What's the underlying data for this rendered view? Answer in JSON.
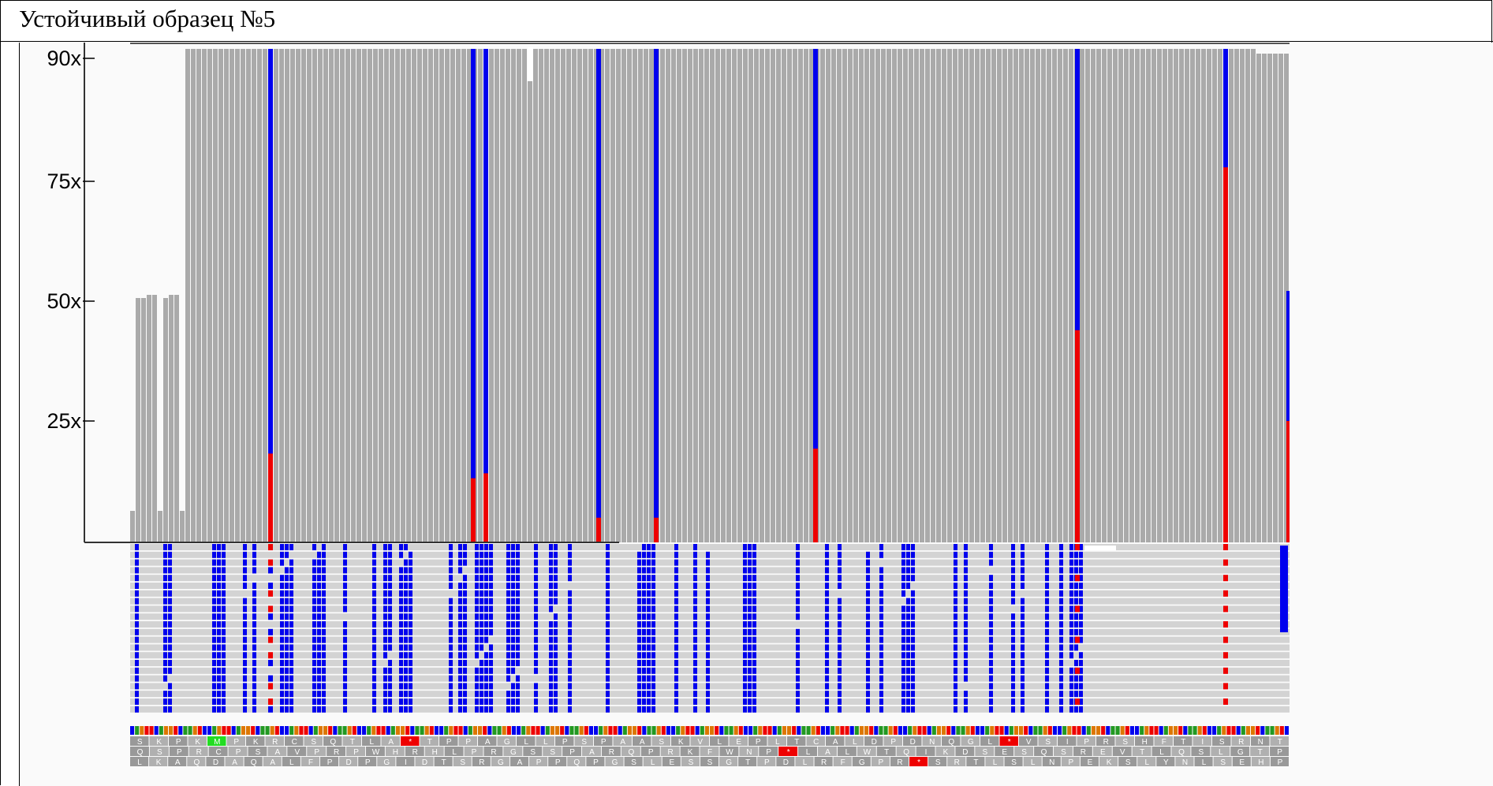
{
  "title": "Устойчивый образец №5",
  "coverage": {
    "y_ticks": [
      "90x",
      "75x",
      "50x",
      "25x"
    ],
    "colors": {
      "ref": "#aaaaaa",
      "alt_blue": "#0000ee",
      "alt_red": "#ee0000",
      "background": "#fafafa"
    }
  },
  "translation": {
    "frame1": [
      "S",
      "K",
      "P",
      "K",
      "M",
      "P",
      "K",
      "R",
      "C",
      "S",
      "Q",
      "T",
      "L",
      "A",
      "*",
      "T",
      "P",
      "P",
      "A",
      "G",
      "L",
      "L",
      "P",
      "S",
      "P",
      "A",
      "A",
      "S",
      "K",
      "V",
      "L",
      "E",
      "P",
      "L",
      "T",
      "C",
      "A",
      "L",
      "D",
      "P",
      "D",
      "N",
      "Q",
      "G",
      "L",
      "*",
      "V",
      "S",
      "I",
      "P",
      "R",
      "S",
      "H",
      "F",
      "T",
      "I",
      "S",
      "R",
      "N",
      "T"
    ],
    "frame2": [
      "Q",
      "S",
      "P",
      "R",
      "C",
      "P",
      "S",
      "A",
      "V",
      "P",
      "R",
      "P",
      "W",
      "H",
      "R",
      "H",
      "L",
      "P",
      "R",
      "G",
      "S",
      "S",
      "P",
      "A",
      "R",
      "Q",
      "P",
      "R",
      "K",
      "F",
      "W",
      "N",
      "P",
      "*",
      "L",
      "A",
      "L",
      "W",
      "T",
      "Q",
      "I",
      "K",
      "D",
      "S",
      "E",
      "S",
      "Q",
      "S",
      "R",
      "E",
      "V",
      "T",
      "L",
      "Q",
      "S",
      "L",
      "G",
      "T",
      "P"
    ],
    "frame3": [
      "L",
      "K",
      "A",
      "Q",
      "D",
      "A",
      "Q",
      "A",
      "L",
      "F",
      "P",
      "D",
      "P",
      "G",
      "I",
      "D",
      "T",
      "S",
      "R",
      "G",
      "A",
      "P",
      "P",
      "Q",
      "P",
      "G",
      "S",
      "L",
      "E",
      "S",
      "S",
      "G",
      "T",
      "P",
      "D",
      "L",
      "R",
      "F",
      "G",
      "P",
      "R",
      "*",
      "S",
      "R",
      "T",
      "L",
      "S",
      "L",
      "N",
      "P",
      "E",
      "K",
      "S",
      "L",
      "Y",
      "N",
      "L",
      "S",
      "E",
      "H",
      "P"
    ],
    "highlight_colors": {
      "start_codon": "#22dd22",
      "stop_codon": "#ee0000"
    }
  }
}
